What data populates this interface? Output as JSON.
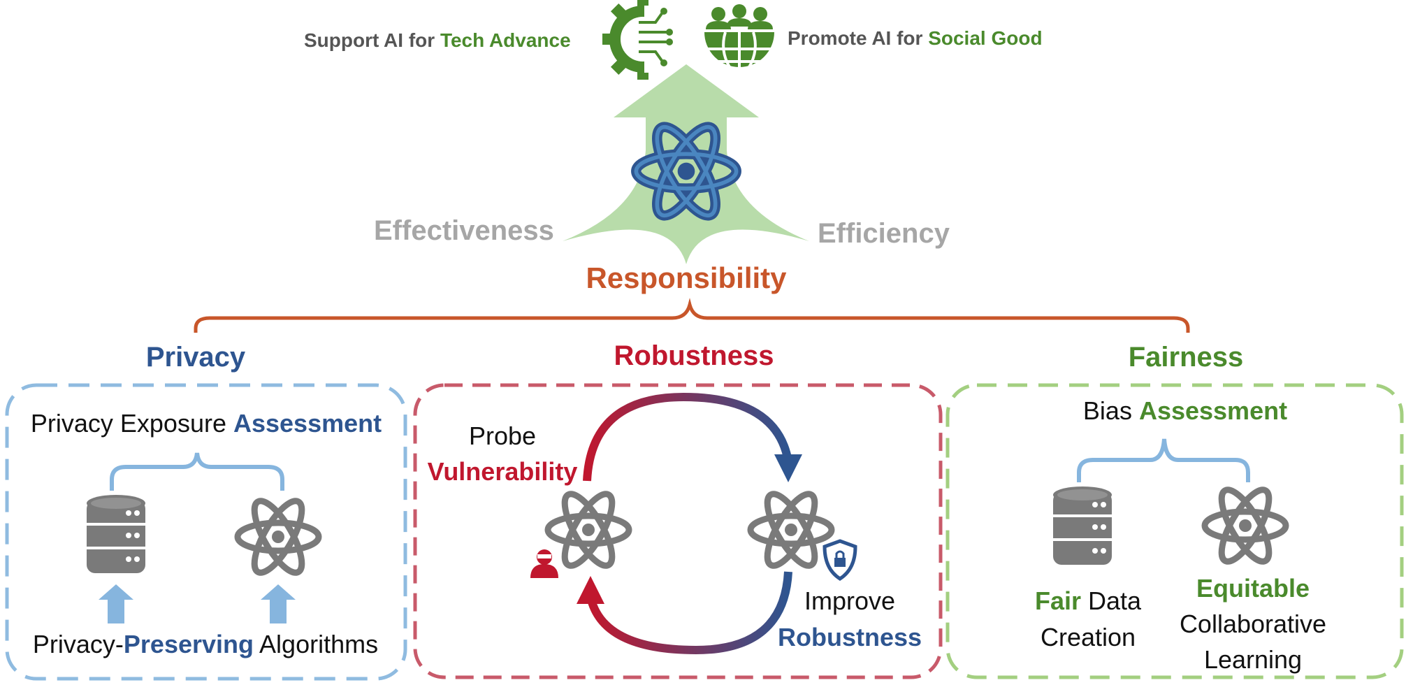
{
  "colors": {
    "blue": "#2e5590",
    "red": "#c0172e",
    "green": "#4a8a2c",
    "orange": "#c8562a",
    "gray_text": "#555555",
    "light_gray": "#9a9a9a",
    "privacy_border": "#8fbbe0",
    "robust_border": "#c85a6a",
    "fair_border": "#a3cf80",
    "arrow_green": "#b8dcaa",
    "icon_gray": "#7a7a7a",
    "light_blue": "#86b5de"
  },
  "top": {
    "support": {
      "pre": "Support AI for ",
      "em": "Tech Advance"
    },
    "promote": {
      "pre": "Promote AI for ",
      "em": "Social Good"
    },
    "effectiveness": "Effectiveness",
    "efficiency": "Efficiency",
    "responsibility": "Responsibility"
  },
  "privacy": {
    "title": "Privacy",
    "assessment_pre": "Privacy Exposure ",
    "assessment_em": "Assessment",
    "bottom_pre": "Privacy-",
    "bottom_em": "Preserving",
    "bottom_post": " Algorithms"
  },
  "robustness": {
    "title": "Robustness",
    "probe": "Probe",
    "vulnerability": "Vulnerability",
    "improve": "Improve",
    "robustness_em": "Robustness"
  },
  "fairness": {
    "title": "Fairness",
    "bias_pre": "Bias ",
    "bias_em": "Assessment",
    "fair_em": "Fair",
    "fair_post": " Data",
    "creation": "Creation",
    "equitable": "Equitable",
    "collaborative": "Collaborative",
    "learning": "Learning"
  }
}
